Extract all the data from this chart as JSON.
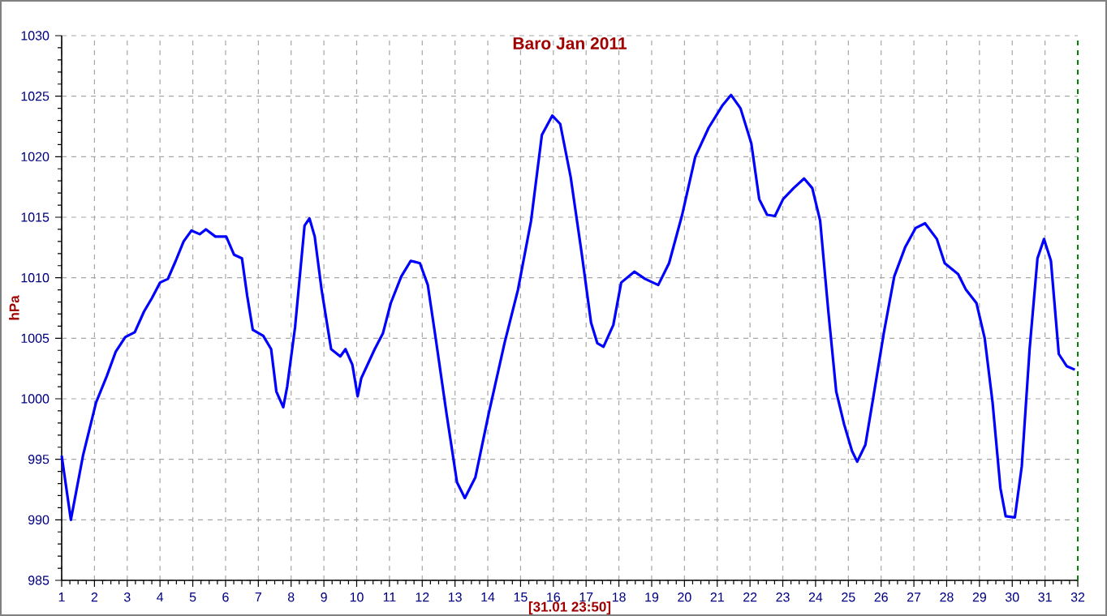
{
  "chart_data": {
    "type": "line",
    "title": "Baro Jan 2011",
    "xlabel": "[31.01 23:50]",
    "ylabel": "hPa",
    "xlim": [
      1,
      32
    ],
    "ylim": [
      985,
      1030
    ],
    "xticks": [
      1,
      2,
      3,
      4,
      5,
      6,
      7,
      8,
      9,
      10,
      11,
      12,
      13,
      14,
      15,
      16,
      17,
      18,
      19,
      20,
      21,
      22,
      23,
      24,
      25,
      26,
      27,
      28,
      29,
      30,
      31,
      32
    ],
    "yticks": [
      985,
      990,
      995,
      1000,
      1005,
      1010,
      1015,
      1020,
      1025,
      1030
    ],
    "grid": true,
    "line_style": "solid",
    "marker": "none",
    "ref_lines": [
      {
        "axis": "x",
        "value": 32,
        "color": "#008000",
        "line_style": "dashed"
      }
    ],
    "series": [
      {
        "color": "#0000ff",
        "x": [
          1,
          1.28,
          1.65,
          2.05,
          2.38,
          2.65,
          2.94,
          3.23,
          3.51,
          3.75,
          4.0,
          4.24,
          4.48,
          4.72,
          4.96,
          5.21,
          5.4,
          5.69,
          6.02,
          6.26,
          6.5,
          6.66,
          6.83,
          7.15,
          7.39,
          7.55,
          7.76,
          7.88,
          8.12,
          8.41,
          8.56,
          8.72,
          8.93,
          9.22,
          9.5,
          9.66,
          9.87,
          10.03,
          10.14,
          10.55,
          10.8,
          11.04,
          11.36,
          11.65,
          11.93,
          12.17,
          12.41,
          12.74,
          13.06,
          13.3,
          13.62,
          14.03,
          14.51,
          14.92,
          15.32,
          15.65,
          15.97,
          16.21,
          16.53,
          16.86,
          17.15,
          17.34,
          17.53,
          17.83,
          18.07,
          18.47,
          18.8,
          19.2,
          19.53,
          19.93,
          20.33,
          20.74,
          21.15,
          21.42,
          21.71,
          22.04,
          22.28,
          22.52,
          22.76,
          23.01,
          23.33,
          23.65,
          23.9,
          24.14,
          24.39,
          24.63,
          24.87,
          25.11,
          25.27,
          25.52,
          25.76,
          26.08,
          26.4,
          26.73,
          27.05,
          27.34,
          27.7,
          27.94,
          28.35,
          28.59,
          28.91,
          29.16,
          29.4,
          29.64,
          29.8,
          30.08,
          30.29,
          30.53,
          30.77,
          30.97,
          31.18,
          31.42,
          31.66,
          31.91
        ],
        "values": [
          995.3,
          990.0,
          995.3,
          999.7,
          1001.9,
          1003.9,
          1005.1,
          1005.5,
          1007.2,
          1008.3,
          1009.6,
          1009.9,
          1011.4,
          1013.0,
          1013.9,
          1013.6,
          1014.0,
          1013.4,
          1013.4,
          1011.9,
          1011.6,
          1008.5,
          1005.7,
          1005.2,
          1004.1,
          1000.6,
          999.3,
          1001.0,
          1005.9,
          1014.3,
          1014.9,
          1013.4,
          1009.0,
          1004.1,
          1003.5,
          1004.1,
          1002.8,
          1000.2,
          1001.7,
          1004.1,
          1005.4,
          1007.9,
          1010.1,
          1011.4,
          1011.2,
          1009.4,
          1005.0,
          998.8,
          993.1,
          991.8,
          993.5,
          998.8,
          1004.6,
          1009.0,
          1014.7,
          1021.8,
          1023.4,
          1022.7,
          1018.3,
          1012.1,
          1006.3,
          1004.6,
          1004.3,
          1006.1,
          1009.6,
          1010.5,
          1009.9,
          1009.4,
          1011.2,
          1015.2,
          1020.0,
          1022.4,
          1024.2,
          1025.1,
          1024.0,
          1021.1,
          1016.5,
          1015.2,
          1015.1,
          1016.5,
          1017.4,
          1018.2,
          1017.4,
          1014.7,
          1007.2,
          1000.6,
          997.9,
          995.7,
          994.8,
          996.2,
          1000.1,
          1005.4,
          1010.1,
          1012.5,
          1014.1,
          1014.5,
          1013.2,
          1011.2,
          1010.3,
          1009.0,
          1007.9,
          1005.0,
          999.7,
          992.6,
          990.3,
          990.2,
          994.4,
          1004.1,
          1011.6,
          1013.2,
          1011.4,
          1003.7,
          1002.7,
          1002.4
        ]
      }
    ]
  }
}
